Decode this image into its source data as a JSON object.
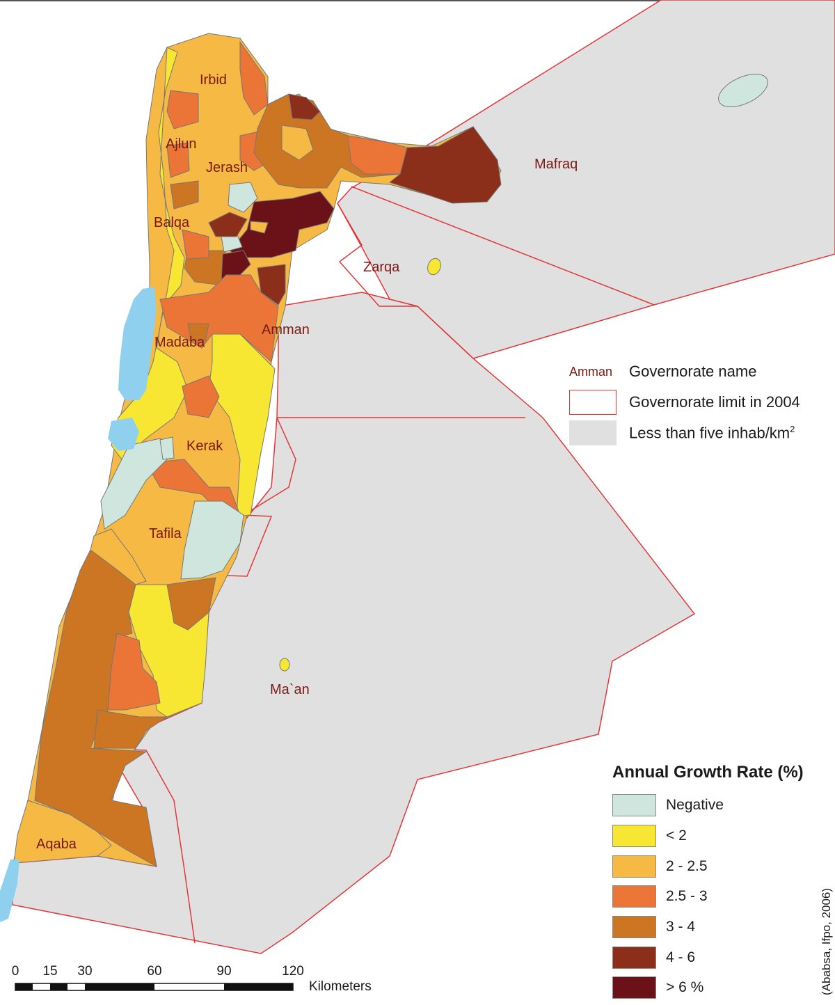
{
  "governorates": {
    "irbid": "Irbid",
    "ajlun": "Ajlun",
    "jerash": "Jerash",
    "mafraq": "Mafraq",
    "balqa": "Balqa",
    "zarqa": "Zarqa",
    "amman": "Amman",
    "madaba": "Madaba",
    "kerak": "Kerak",
    "tafila": "Tafila",
    "maan": "Ma`an",
    "aqaba": "Aqaba"
  },
  "info_legend": {
    "name_sample": "Amman",
    "name_label": "Governorate name",
    "limit_label": "Governorate limit in 2004",
    "sparse_label_main": "Less than five inhab/km",
    "sparse_label_sup": "2"
  },
  "growth_legend": {
    "title": "Annual Growth Rate (%)",
    "classes": [
      {
        "label": "Negative",
        "color": "#cfe6df"
      },
      {
        "label": "< 2",
        "color": "#f7e733"
      },
      {
        "label": "2 - 2.5",
        "color": "#f6b944"
      },
      {
        "label": "2.5 - 3",
        "color": "#ea7537"
      },
      {
        "label": "3 - 4",
        "color": "#cc7523"
      },
      {
        "label": "4 - 6",
        "color": "#8b2e1a"
      },
      {
        "label": "> 6 %",
        "color": "#6a1218"
      }
    ]
  },
  "source_note": "(Ababsa, Ifpo, 2006)",
  "scale_bar": {
    "ticks": [
      "0",
      "15",
      "30",
      "60",
      "90",
      "120"
    ],
    "unit": "Kilometers"
  },
  "colors": {
    "sparse_gray": "#e1e0e1",
    "water": "#8fd0ef",
    "boundary_red": "#e0383a",
    "label_dark_red": "#7a1a14"
  }
}
